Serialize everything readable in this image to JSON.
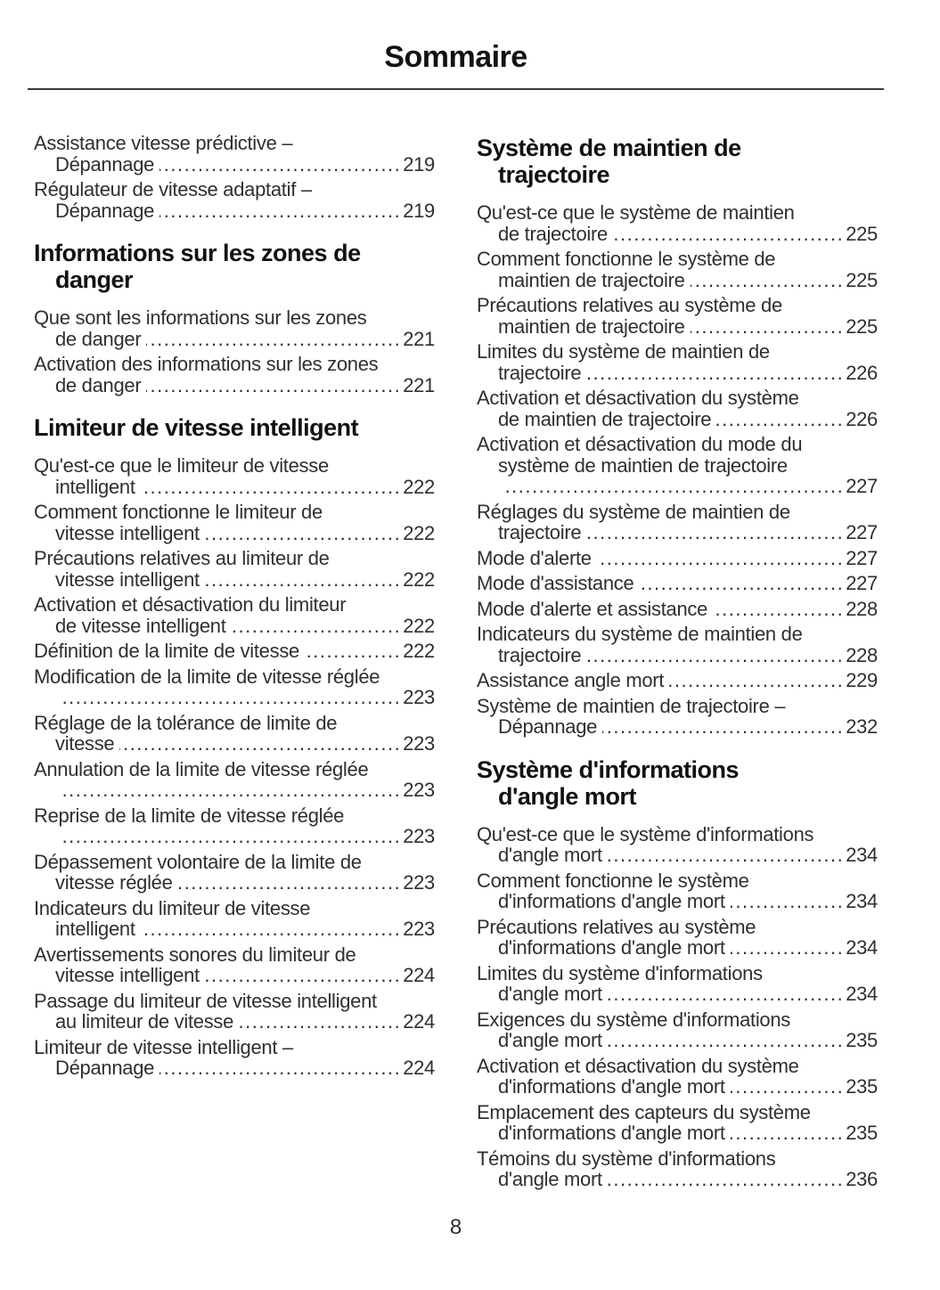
{
  "document": {
    "title": "Sommaire",
    "footer_page_number": "8"
  },
  "colors": {
    "ink": "#2f2f2f",
    "heading_ink": "#121212",
    "rule": "#3a3a3a",
    "background": "#ffffff"
  },
  "toc": {
    "columns": [
      {
        "blocks": [
          {
            "type": "entry",
            "wrap_lines": [
              "Assistance vitesse prédictive –"
            ],
            "last_line": "Dépannage",
            "page_number": "219"
          },
          {
            "type": "entry",
            "wrap_lines": [
              "Régulateur de vitesse adaptatif –"
            ],
            "last_line": "Dépannage",
            "page_number": "219"
          },
          {
            "type": "heading",
            "lines": [
              "Informations sur les zones de",
              "danger"
            ]
          },
          {
            "type": "entry",
            "wrap_lines": [
              "Que sont les informations sur les zones"
            ],
            "last_line": "de danger",
            "page_number": "221"
          },
          {
            "type": "entry",
            "wrap_lines": [
              "Activation des informations sur les zones"
            ],
            "last_line": "de danger",
            "page_number": "221"
          },
          {
            "type": "heading",
            "lines": [
              "Limiteur de vitesse intelligent"
            ]
          },
          {
            "type": "entry",
            "wrap_lines": [
              "Qu'est-ce que le limiteur de vitesse"
            ],
            "last_line": "intelligent",
            "page_number": "222"
          },
          {
            "type": "entry",
            "wrap_lines": [
              "Comment fonctionne le limiteur de"
            ],
            "last_line": "vitesse intelligent",
            "page_number": "222"
          },
          {
            "type": "entry",
            "wrap_lines": [
              "Précautions relatives au limiteur de"
            ],
            "last_line": "vitesse intelligent",
            "page_number": "222"
          },
          {
            "type": "entry",
            "wrap_lines": [
              "Activation et désactivation du limiteur"
            ],
            "last_line": "de vitesse intelligent",
            "page_number": "222"
          },
          {
            "type": "entry",
            "wrap_lines": [],
            "last_line": "Définition de la limite de vitesse",
            "page_number": "222"
          },
          {
            "type": "entry",
            "wrap_lines": [
              "Modification de la limite de vitesse réglée"
            ],
            "last_line": "",
            "page_number": "223"
          },
          {
            "type": "entry",
            "wrap_lines": [
              "Réglage de la tolérance de limite de"
            ],
            "last_line": "vitesse",
            "page_number": "223"
          },
          {
            "type": "entry",
            "wrap_lines": [
              "Annulation de la limite de vitesse réglée"
            ],
            "last_line": "",
            "page_number": "223"
          },
          {
            "type": "entry",
            "wrap_lines": [
              "Reprise de la limite de vitesse réglée"
            ],
            "last_line": "",
            "page_number": "223"
          },
          {
            "type": "entry",
            "wrap_lines": [
              "Dépassement volontaire de la limite de"
            ],
            "last_line": "vitesse réglée",
            "page_number": "223"
          },
          {
            "type": "entry",
            "wrap_lines": [
              "Indicateurs du limiteur de vitesse"
            ],
            "last_line": "intelligent",
            "page_number": "223"
          },
          {
            "type": "entry",
            "wrap_lines": [
              "Avertissements sonores du limiteur de"
            ],
            "last_line": "vitesse intelligent",
            "page_number": "224"
          },
          {
            "type": "entry",
            "wrap_lines": [
              "Passage du limiteur de vitesse intelligent"
            ],
            "last_line": "au limiteur de vitesse",
            "page_number": "224"
          },
          {
            "type": "entry",
            "wrap_lines": [
              "Limiteur de vitesse intelligent –"
            ],
            "last_line": "Dépannage",
            "page_number": "224"
          }
        ]
      },
      {
        "blocks": [
          {
            "type": "heading",
            "lines": [
              "Système de maintien de",
              "trajectoire"
            ]
          },
          {
            "type": "entry",
            "wrap_lines": [
              "Qu'est-ce que le système de maintien"
            ],
            "last_line": "de trajectoire",
            "page_number": "225"
          },
          {
            "type": "entry",
            "wrap_lines": [
              "Comment fonctionne le système de"
            ],
            "last_line": "maintien de trajectoire",
            "page_number": "225"
          },
          {
            "type": "entry",
            "wrap_lines": [
              "Précautions relatives au système de"
            ],
            "last_line": "maintien de trajectoire",
            "page_number": "225"
          },
          {
            "type": "entry",
            "wrap_lines": [
              "Limites du système de maintien de"
            ],
            "last_line": "trajectoire",
            "page_number": "226"
          },
          {
            "type": "entry",
            "wrap_lines": [
              "Activation et désactivation du système"
            ],
            "last_line": "de maintien de trajectoire",
            "page_number": "226"
          },
          {
            "type": "entry",
            "wrap_lines": [
              "Activation et désactivation du mode du",
              "système de maintien de trajectoire"
            ],
            "last_line": "",
            "page_number": "227"
          },
          {
            "type": "entry",
            "wrap_lines": [
              "Réglages du système de maintien de"
            ],
            "last_line": "trajectoire",
            "page_number": "227"
          },
          {
            "type": "entry",
            "wrap_lines": [],
            "last_line": "Mode d'alerte",
            "page_number": "227"
          },
          {
            "type": "entry",
            "wrap_lines": [],
            "last_line": "Mode d'assistance",
            "page_number": "227"
          },
          {
            "type": "entry",
            "wrap_lines": [],
            "last_line": "Mode d'alerte et assistance",
            "page_number": "228"
          },
          {
            "type": "entry",
            "wrap_lines": [
              "Indicateurs du système de maintien de"
            ],
            "last_line": "trajectoire",
            "page_number": "228"
          },
          {
            "type": "entry",
            "wrap_lines": [],
            "last_line": "Assistance angle mort",
            "page_number": "229"
          },
          {
            "type": "entry",
            "wrap_lines": [
              "Système de maintien de trajectoire –"
            ],
            "last_line": "Dépannage",
            "page_number": "232"
          },
          {
            "type": "heading",
            "lines": [
              "Système d'informations",
              "d'angle mort"
            ]
          },
          {
            "type": "entry",
            "wrap_lines": [
              "Qu'est-ce que le système d'informations"
            ],
            "last_line": "d'angle mort",
            "page_number": "234"
          },
          {
            "type": "entry",
            "wrap_lines": [
              "Comment fonctionne le système"
            ],
            "last_line": "d'informations d'angle mort",
            "page_number": "234"
          },
          {
            "type": "entry",
            "wrap_lines": [
              "Précautions relatives au système"
            ],
            "last_line": "d'informations d'angle mort",
            "page_number": "234"
          },
          {
            "type": "entry",
            "wrap_lines": [
              "Limites du système d'informations"
            ],
            "last_line": "d'angle mort",
            "page_number": "234"
          },
          {
            "type": "entry",
            "wrap_lines": [
              "Exigences du système d'informations"
            ],
            "last_line": "d'angle mort",
            "page_number": "235"
          },
          {
            "type": "entry",
            "wrap_lines": [
              "Activation et désactivation du système"
            ],
            "last_line": "d'informations d'angle mort",
            "page_number": "235"
          },
          {
            "type": "entry",
            "wrap_lines": [
              "Emplacement des capteurs du système"
            ],
            "last_line": "d'informations d'angle mort",
            "page_number": "235"
          },
          {
            "type": "entry",
            "wrap_lines": [
              "Témoins du système d'informations"
            ],
            "last_line": "d'angle mort",
            "page_number": "236"
          }
        ]
      }
    ]
  }
}
